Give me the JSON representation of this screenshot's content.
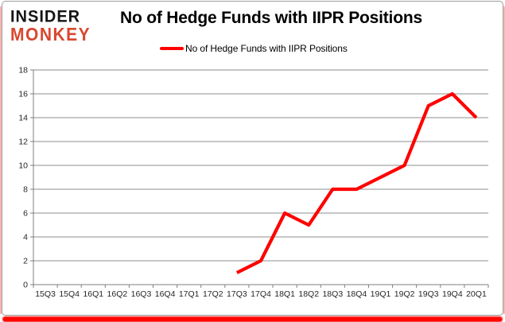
{
  "logo": {
    "line1": "INSIDER",
    "line2": "MONKEY"
  },
  "header": {
    "title": "No of Hedge Funds with IIPR Positions"
  },
  "legend": {
    "label": "No of Hedge Funds with IIPR Positions"
  },
  "colors": {
    "series": "#ff0000",
    "logo_accent": "#d9472f",
    "gridline": "#8c8c8c",
    "axis": "#7f7f7f",
    "axis_text": "#262626",
    "shadow_red": "#fe0500"
  },
  "chart_data": {
    "type": "line",
    "title": "No of Hedge Funds with IIPR Positions",
    "xlabel": "",
    "ylabel": "",
    "categories": [
      "15Q3",
      "15Q4",
      "16Q1",
      "16Q2",
      "16Q3",
      "16Q4",
      "17Q1",
      "17Q2",
      "17Q3",
      "17Q4",
      "18Q1",
      "18Q2",
      "18Q3",
      "18Q4",
      "19Q1",
      "19Q2",
      "19Q3",
      "19Q4",
      "20Q1"
    ],
    "series": [
      {
        "name": "No of Hedge Funds with IIPR Positions",
        "values": [
          null,
          null,
          null,
          null,
          null,
          null,
          null,
          null,
          1,
          2,
          6,
          5,
          8,
          8,
          9,
          10,
          15,
          16,
          14
        ]
      }
    ],
    "ylim": [
      0,
      18
    ],
    "yticks": [
      0,
      2,
      4,
      6,
      8,
      10,
      12,
      14,
      16,
      18
    ],
    "grid": true,
    "legend_position": "top"
  }
}
